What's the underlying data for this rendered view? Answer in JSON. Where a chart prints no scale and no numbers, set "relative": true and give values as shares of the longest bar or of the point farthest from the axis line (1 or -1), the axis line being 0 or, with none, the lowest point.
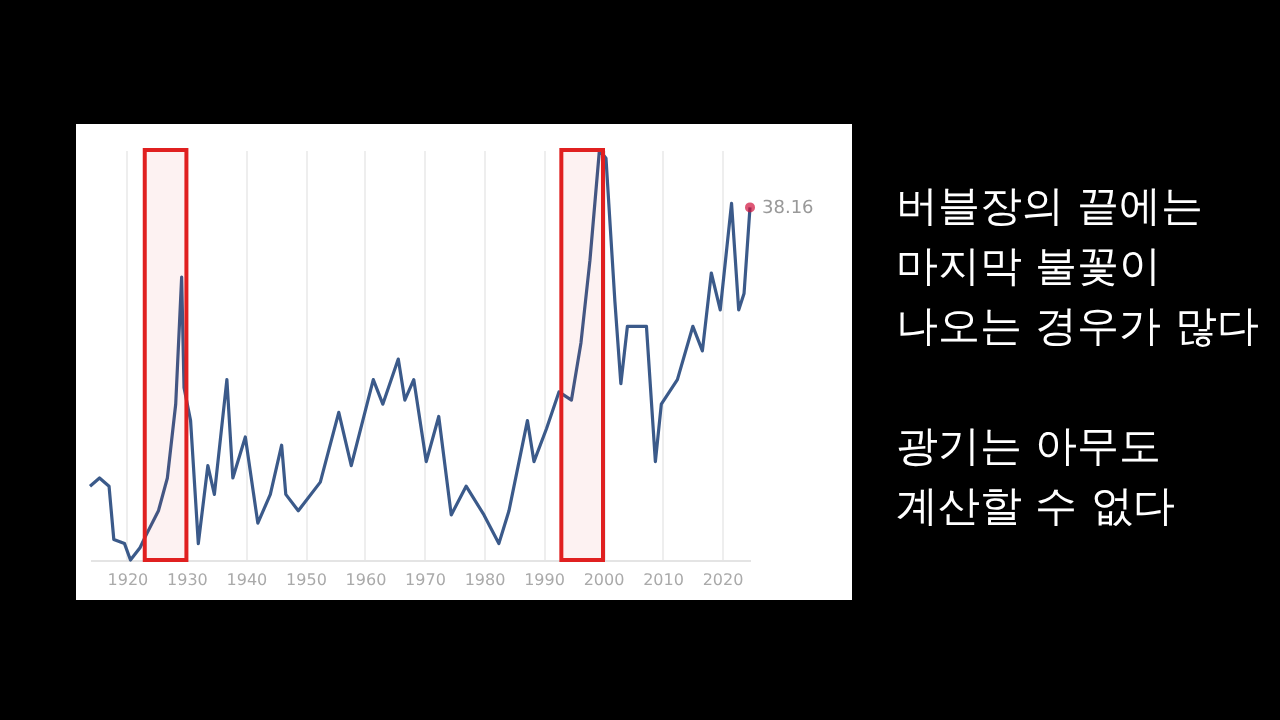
{
  "chart_data": {
    "type": "line",
    "relative": true,
    "grid": "x",
    "marker": "none",
    "xlim": [
      1913.8,
      2024.7
    ],
    "xticks": [
      1920,
      1930,
      1940,
      1950,
      1960,
      1970,
      1980,
      1990,
      2000,
      2010,
      2020
    ],
    "x": [
      1913.8,
      1915.4,
      1917,
      1917.8,
      1919.6,
      1920.6,
      1922.2,
      1923.2,
      1925.3,
      1926.8,
      1928.2,
      1929.2,
      1929.6,
      1930.7,
      1932,
      1933.6,
      1934.7,
      1936.8,
      1937.8,
      1939.9,
      1942,
      1944.1,
      1946,
      1946.7,
      1948.8,
      1952.5,
      1955.6,
      1957.7,
      1961.4,
      1963,
      1965.6,
      1966.7,
      1968.2,
      1970.3,
      1972.4,
      1974.5,
      1977,
      1980,
      1982.5,
      1984.2,
      1987.3,
      1988.4,
      1990.5,
      1992.6,
      1994.7,
      1996.3,
      1997.8,
      1999.4,
      2000.5,
      2002,
      2003,
      2004.1,
      2007.3,
      2008.8,
      2009.8,
      2012.5,
      2015.1,
      2016.7,
      2018.2,
      2019.7,
      2021.6,
      2022.8,
      2023.7,
      2024.7
    ],
    "series": [
      {
        "color": "#3b5a8a",
        "values": [
          0.18,
          0.2,
          0.18,
          0.05,
          0.04,
          0,
          0.03,
          0.06,
          0.12,
          0.2,
          0.38,
          0.69,
          0.42,
          0.34,
          0.04,
          0.23,
          0.16,
          0.44,
          0.2,
          0.3,
          0.09,
          0.16,
          0.28,
          0.16,
          0.12,
          0.19,
          0.36,
          0.23,
          0.44,
          0.38,
          0.49,
          0.39,
          0.44,
          0.24,
          0.35,
          0.11,
          0.18,
          0.11,
          0.04,
          0.12,
          0.34,
          0.24,
          0.32,
          0.41,
          0.39,
          0.53,
          0.73,
          1,
          0.98,
          0.63,
          0.43,
          0.57,
          0.57,
          0.24,
          0.38,
          0.44,
          0.57,
          0.51,
          0.7,
          0.61,
          0.87,
          0.61,
          0.65,
          0.86
        ]
      }
    ],
    "bands": [
      {
        "axis": "x",
        "from": 1923,
        "to": 1930,
        "color": "#e02020"
      },
      {
        "axis": "x",
        "from": 1993,
        "to": 2000,
        "color": "#e02020"
      }
    ],
    "annotations": [
      {
        "text": "38.16",
        "x": 2024.7,
        "y": 0.86
      },
      "버블장의 끝에는",
      "마지막 불꽃이",
      "나오는 경우가 많다",
      "광기는 아무도",
      "계산할 수 없다"
    ]
  }
}
